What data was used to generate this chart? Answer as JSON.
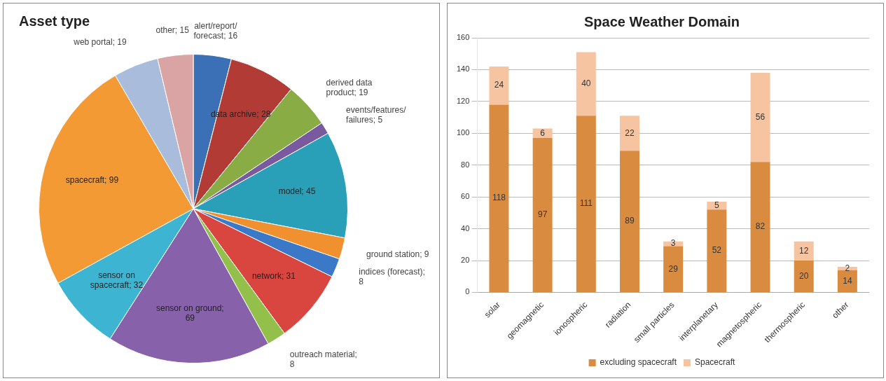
{
  "chart_data": [
    {
      "type": "pie",
      "title": "Asset type",
      "categories": [
        "alert/report/forecast; 16",
        "data archive; 28",
        "derived data product; 19",
        "events/features/failures; 5",
        "model; 45",
        "ground station; 9",
        "indices (forecast); 8",
        "network; 31",
        "outreach material; 8",
        "sensor on ground; 69",
        "sensor on spacecraft; 32",
        "spacecraft; 99",
        "web portal; 19",
        "other; 15"
      ],
      "values": [
        16,
        28,
        19,
        5,
        45,
        9,
        8,
        31,
        8,
        69,
        32,
        99,
        19,
        15
      ],
      "colors": [
        "#3b6fb6",
        "#b33b36",
        "#8aac45",
        "#7a5a9e",
        "#2aa0b8",
        "#f0902e",
        "#3b79c8",
        "#d8463f",
        "#93c04a",
        "#8762ab",
        "#3db5d2",
        "#f39a35",
        "#a9bcdc",
        "#dba4a4"
      ],
      "legend": false
    },
    {
      "type": "bar",
      "title": "Space Weather Domain",
      "categories": [
        "solar",
        "geomagnetic",
        "ionospheric",
        "radiation",
        "small particles",
        "interplanetary",
        "magnetospheric",
        "thermospheric",
        "other"
      ],
      "stacked": true,
      "series": [
        {
          "name": "excluding spacecraft",
          "color": "#d98c3f",
          "values": [
            118,
            97,
            111,
            89,
            29,
            52,
            82,
            20,
            14
          ]
        },
        {
          "name": "Spacecraft",
          "color": "#f6c4a0",
          "values": [
            24,
            6,
            40,
            22,
            3,
            5,
            56,
            12,
            2
          ]
        }
      ],
      "ylim": [
        0,
        160
      ],
      "yticks": [
        0,
        20,
        40,
        60,
        80,
        100,
        120,
        140,
        160
      ],
      "grid": "y",
      "legend": "bottom",
      "data_labels": true
    }
  ]
}
